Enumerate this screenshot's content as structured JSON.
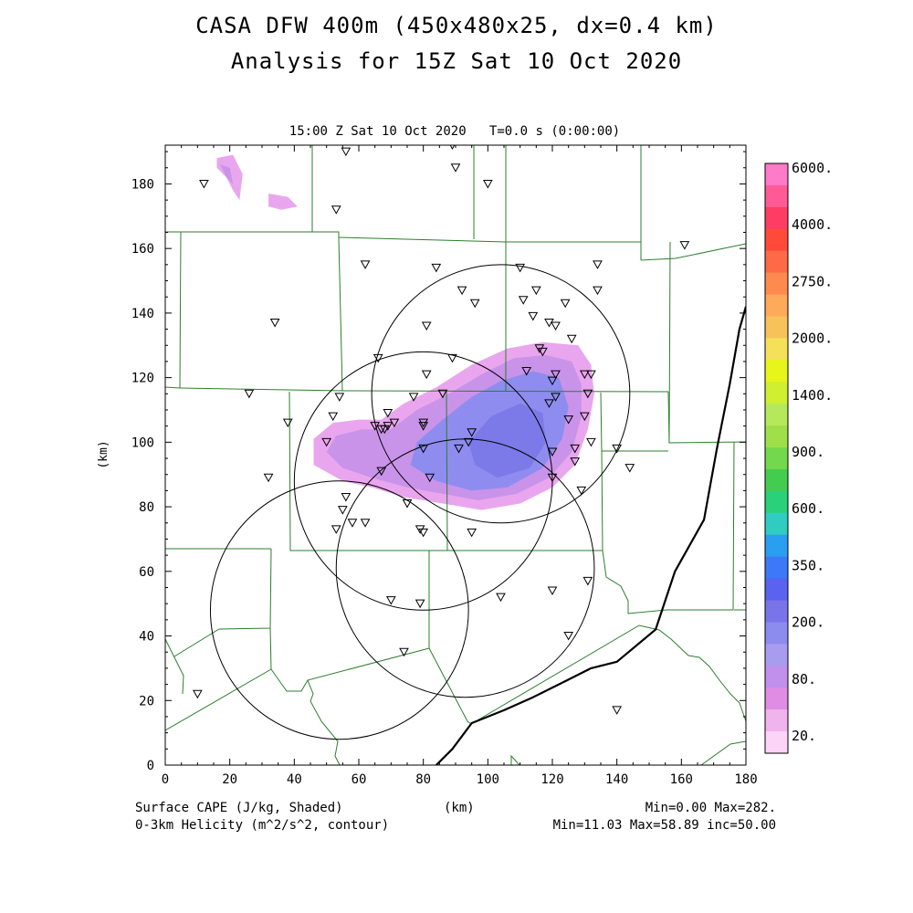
{
  "title": "CASA DFW 400m (450x480x25, dx=0.4 km)",
  "subtitle": "Analysis for 15Z Sat 10 Oct 2020",
  "plot_time_label": "15:00 Z Sat 10 Oct 2020   T=0.0 s (0:00:00)",
  "footer": {
    "field1": "Surface CAPE (J/kg, Shaded)",
    "field2": "0-3km Helicity (m^2/s^2, contour)",
    "unit": "(km)",
    "stats1": "Min=0.00 Max=282.",
    "stats2": "Min=11.03 Max=58.89 inc=50.00"
  },
  "chart_data": {
    "type": "heatmap",
    "title": "CASA DFW 400m (450x480x25, dx=0.4 km)",
    "xlabel": "(km)",
    "ylabel": "(km)",
    "xlim": [
      0,
      180
    ],
    "ylim": [
      0,
      192
    ],
    "x_ticks": [
      0,
      20,
      40,
      60,
      80,
      100,
      120,
      140,
      160,
      180
    ],
    "y_ticks": [
      0,
      20,
      40,
      60,
      80,
      100,
      120,
      140,
      160,
      180
    ],
    "colorbar": {
      "labels": [
        "6000.",
        "4000.",
        "2750.",
        "2000.",
        "1400.",
        "900.",
        "600.",
        "350.",
        "200.",
        "80.",
        "20."
      ],
      "colors": [
        "#ff7ac8",
        "#ff5a96",
        "#ff3c64",
        "#ff4a3a",
        "#ff6a46",
        "#ff8a50",
        "#ffaa5a",
        "#f7c25a",
        "#f5e05a",
        "#e8f51a",
        "#cfef30",
        "#b6e85c",
        "#9fe04a",
        "#74d84c",
        "#44cc50",
        "#2ad07a",
        "#30ccc2",
        "#2a9ef0",
        "#3c78f8",
        "#5a62f0",
        "#7a74ea",
        "#8c8cee",
        "#a89cf0",
        "#c090ec",
        "#e08ce4",
        "#f0b4ec",
        "#fcd4f8"
      ]
    },
    "cape_field": {
      "min": 0.0,
      "max": 282.0,
      "regions": [
        {
          "level": "20.",
          "polygon": [
            [
              67,
              107
            ],
            [
              74,
              112
            ],
            [
              84,
              117
            ],
            [
              95,
              124
            ],
            [
              106,
              129
            ],
            [
              117,
              131
            ],
            [
              128,
              130
            ],
            [
              132,
              124
            ],
            [
              133,
              115
            ],
            [
              131,
              104
            ],
            [
              127,
              93
            ],
            [
              120,
              86
            ],
            [
              110,
              81
            ],
            [
              98,
              79
            ],
            [
              86,
              81
            ],
            [
              74,
              83
            ],
            [
              64,
              86
            ],
            [
              55,
              88
            ],
            [
              46,
              93
            ],
            [
              46,
              101
            ],
            [
              52,
              106
            ],
            [
              60,
              107
            ]
          ]
        },
        {
          "level": "80.",
          "polygon": [
            [
              70,
              104
            ],
            [
              78,
              110
            ],
            [
              88,
              115
            ],
            [
              98,
              121
            ],
            [
              108,
              126
            ],
            [
              118,
              127
            ],
            [
              126,
              125
            ],
            [
              129,
              118
            ],
            [
              129,
              108
            ],
            [
              126,
              97
            ],
            [
              119,
              89
            ],
            [
              109,
              84
            ],
            [
              97,
              82
            ],
            [
              86,
              84
            ],
            [
              75,
              86
            ],
            [
              64,
              89
            ],
            [
              55,
              92
            ],
            [
              50,
              97
            ],
            [
              53,
              102
            ],
            [
              61,
              104
            ]
          ]
        },
        {
          "level": "200.",
          "polygon": [
            [
              78,
              100
            ],
            [
              86,
              107
            ],
            [
              95,
              114
            ],
            [
              104,
              119
            ],
            [
              114,
              122
            ],
            [
              122,
              120
            ],
            [
              125,
              111
            ],
            [
              123,
              101
            ],
            [
              117,
              92
            ],
            [
              106,
              86
            ],
            [
              95,
              85
            ],
            [
              84,
              88
            ],
            [
              76,
              93
            ]
          ]
        },
        {
          "level": "200.",
          "polygon": [
            [
              94,
              100
            ],
            [
              101,
              108
            ],
            [
              110,
              112
            ],
            [
              117,
              109
            ],
            [
              118,
              100
            ],
            [
              113,
              92
            ],
            [
              103,
              89
            ],
            [
              96,
              93
            ]
          ]
        },
        {
          "level": "20.",
          "polygon": [
            [
              16,
              188
            ],
            [
              21,
              189
            ],
            [
              24,
              183
            ],
            [
              23,
              175
            ],
            [
              21,
              178
            ],
            [
              19,
              182
            ],
            [
              16,
              185
            ]
          ]
        },
        {
          "level": "80.",
          "polygon": [
            [
              17,
              186
            ],
            [
              20,
              185
            ],
            [
              21,
              180
            ],
            [
              19,
              182
            ]
          ]
        },
        {
          "level": "20.",
          "polygon": [
            [
              32,
              177
            ],
            [
              38,
              176
            ],
            [
              41,
              173
            ],
            [
              36,
              172
            ],
            [
              32,
              173
            ]
          ]
        }
      ]
    },
    "helicity_contours": {
      "min": 11.03,
      "max": 58.89,
      "inc": 50.0,
      "circles": [
        {
          "center": [
            104,
            115
          ],
          "radius": 40
        },
        {
          "center": [
            80,
            88
          ],
          "radius": 40
        },
        {
          "center": [
            93,
            61
          ],
          "radius": 40
        },
        {
          "center": [
            54,
            48
          ],
          "radius": 40
        }
      ]
    },
    "stations": [
      [
        12,
        180
      ],
      [
        56,
        190
      ],
      [
        53,
        172
      ],
      [
        89,
        192
      ],
      [
        90,
        185
      ],
      [
        100,
        180
      ],
      [
        62,
        155
      ],
      [
        84,
        154
      ],
      [
        161,
        161
      ],
      [
        34,
        137
      ],
      [
        92,
        147
      ],
      [
        96,
        143
      ],
      [
        110,
        154
      ],
      [
        111,
        144
      ],
      [
        115,
        147
      ],
      [
        114,
        139
      ],
      [
        124,
        143
      ],
      [
        119,
        137
      ],
      [
        121,
        136
      ],
      [
        126,
        132
      ],
      [
        134,
        155
      ],
      [
        134,
        147
      ],
      [
        81,
        136
      ],
      [
        89,
        126
      ],
      [
        66,
        126
      ],
      [
        81,
        121
      ],
      [
        116,
        129
      ],
      [
        117,
        128
      ],
      [
        112,
        122
      ],
      [
        120,
        119
      ],
      [
        121,
        121
      ],
      [
        130,
        121
      ],
      [
        132,
        121
      ],
      [
        131,
        115
      ],
      [
        119,
        112
      ],
      [
        121,
        114
      ],
      [
        130,
        108
      ],
      [
        125,
        107
      ],
      [
        54,
        114
      ],
      [
        26,
        115
      ],
      [
        52,
        108
      ],
      [
        38,
        106
      ],
      [
        65,
        105
      ],
      [
        67,
        104
      ],
      [
        69,
        105
      ],
      [
        71,
        106
      ],
      [
        80,
        106
      ],
      [
        80,
        105
      ],
      [
        86,
        115
      ],
      [
        77,
        114
      ],
      [
        69,
        109
      ],
      [
        68,
        104
      ],
      [
        50,
        100
      ],
      [
        95,
        103
      ],
      [
        94,
        100
      ],
      [
        91,
        98
      ],
      [
        80,
        98
      ],
      [
        120,
        97
      ],
      [
        127,
        98
      ],
      [
        132,
        100
      ],
      [
        140,
        98
      ],
      [
        144,
        92
      ],
      [
        127,
        94
      ],
      [
        32,
        89
      ],
      [
        67,
        91
      ],
      [
        82,
        89
      ],
      [
        120,
        89
      ],
      [
        129,
        85
      ],
      [
        56,
        83
      ],
      [
        75,
        81
      ],
      [
        55,
        79
      ],
      [
        58,
        75
      ],
      [
        62,
        75
      ],
      [
        53,
        73
      ],
      [
        79,
        73
      ],
      [
        80,
        72
      ],
      [
        95,
        72
      ],
      [
        131,
        57
      ],
      [
        120,
        54
      ],
      [
        104,
        52
      ],
      [
        70,
        51
      ],
      [
        79,
        50
      ],
      [
        125,
        40
      ],
      [
        74,
        35
      ],
      [
        10,
        22
      ],
      [
        140,
        17
      ]
    ],
    "dryline": [
      [
        84,
        0
      ],
      [
        89,
        5
      ],
      [
        95,
        13
      ],
      [
        105,
        17
      ],
      [
        114,
        21
      ],
      [
        124,
        26
      ],
      [
        132,
        30
      ],
      [
        140,
        32
      ],
      [
        152,
        42
      ],
      [
        158,
        60
      ],
      [
        167,
        76
      ],
      [
        171,
        98
      ],
      [
        175,
        118
      ],
      [
        178,
        135
      ],
      [
        180,
        142
      ]
    ]
  }
}
